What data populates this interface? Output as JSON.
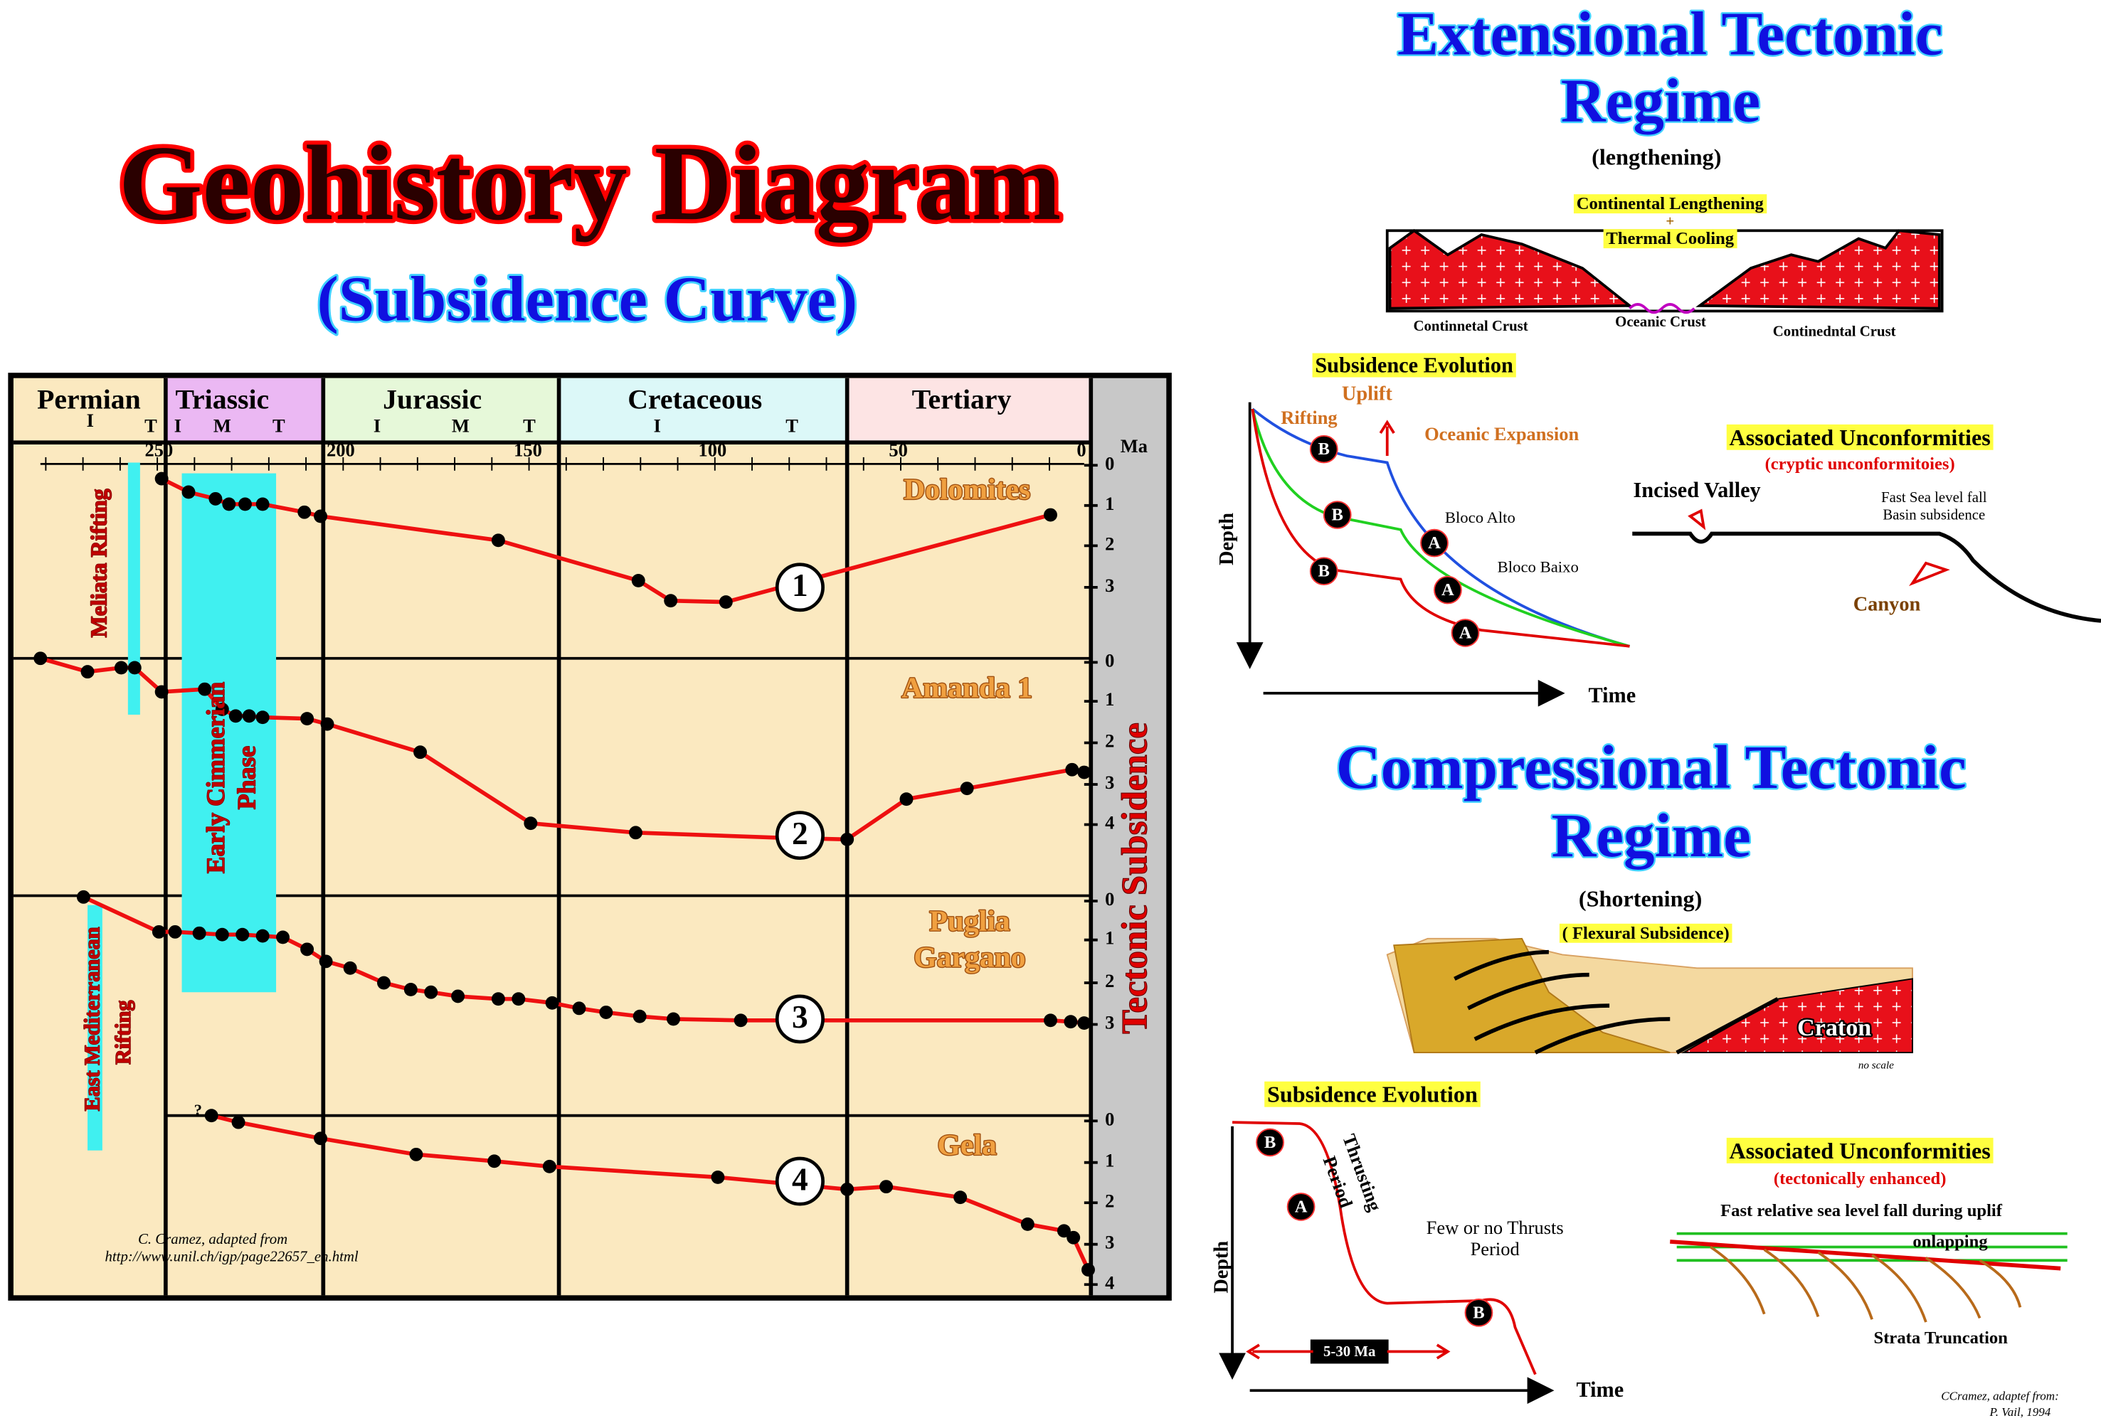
{
  "title": "Geohistory Diagram",
  "subtitle": "(Subsidence Curve)",
  "periods": [
    "Permian",
    "Triassic",
    "Jurassic",
    "Cretaceous",
    "Tertiary"
  ],
  "subperiods": [
    "I",
    "T",
    "I",
    "M",
    "T",
    "I",
    "M",
    "T",
    "I",
    "T"
  ],
  "age_ticks": [
    "250",
    "200",
    "150",
    "100",
    "50",
    "0"
  ],
  "age_unit": "Ma",
  "y_axis_label": "Tectonic Subsidence",
  "wells": [
    {
      "name": "Dolomites",
      "number": "1",
      "depth_ticks": [
        "0",
        "1",
        "2",
        "3"
      ]
    },
    {
      "name": "Amanda 1",
      "number": "2",
      "depth_ticks": [
        "0",
        "1",
        "2",
        "3",
        "4"
      ]
    },
    {
      "name": [
        "Puglia",
        "Gargano"
      ],
      "number": "3",
      "depth_ticks": [
        "0",
        "1",
        "2",
        "3"
      ]
    },
    {
      "name": "Gela",
      "number": "4",
      "depth_ticks": [
        "0",
        "1",
        "2",
        "3",
        "4"
      ]
    }
  ],
  "events": [
    "Meliata Rifting",
    [
      "Early  Cimmerian",
      "Phase"
    ],
    [
      "East Mediterranean",
      "Rifting"
    ]
  ],
  "question": "?",
  "credit": [
    "C. Cramez, adapted from",
    "http://www.unil.ch/igp/page22657_en.html"
  ],
  "extensional": {
    "title": [
      "Extensional Tectonic",
      "Regime"
    ],
    "subtitle": "(lengthening)",
    "process": [
      "Continental Lengthening",
      "+",
      "Thermal Cooling"
    ],
    "crust_labels": [
      "Continnetal Crust",
      "Oceanic Crust",
      "Continedntal Crust"
    ],
    "evolution_title": "Subsidence Evolution",
    "uplift": "Uplift",
    "rifting": "Rifting",
    "oceanic": "Oceanic Expansion",
    "blocks": [
      "Bloco  Alto",
      "Bloco Baixo"
    ],
    "markers": [
      "B",
      "B",
      "B",
      "A",
      "A",
      "A"
    ],
    "depth": "Depth",
    "time": "Time",
    "unconformities_title": "Associated Unconformities",
    "unconformities_subtitle": "(cryptic unconformitoies)",
    "features": [
      "Incised Valley",
      "Fast Sea level fall",
      "Basin subsidence",
      "Canyon"
    ]
  },
  "compressional": {
    "title": [
      "Compressional Tectonic",
      "Regime"
    ],
    "subtitle": "(Shortening)",
    "note": "( Flexural Subsidence)",
    "craton": "Craton",
    "scale": "no scale",
    "evolution_title": "Subsidence Evolution",
    "thrusting": [
      "Thrusting",
      "Period"
    ],
    "few": [
      "Few or no Thrusts",
      "Period"
    ],
    "duration": "5-30 Ma",
    "markers": [
      "B",
      "A",
      "B"
    ],
    "depth": "Depth",
    "time": "Time",
    "unconformities_title": "Associated Unconformities",
    "unconformities_subtitle": "(tectonically enhanced)",
    "features": [
      "Fast relative sea level fall during uplif",
      "onlapping",
      "Strata Truncation"
    ],
    "credit": [
      "CCramez, adaptef from:",
      "P. Vail, 1994"
    ]
  }
}
